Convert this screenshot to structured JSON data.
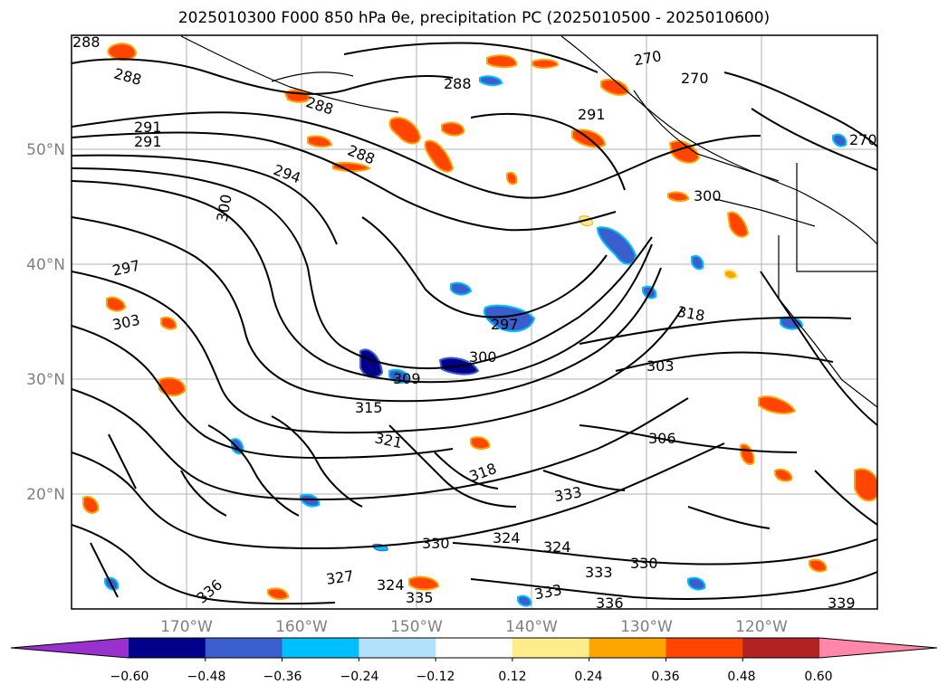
{
  "title": "2025010300 F000 850 hPa θe, precipitation PC (2025010500 - 2025010600)",
  "map": {
    "lat_labels": [
      "50°N",
      "40°N",
      "30°N",
      "20°N"
    ],
    "lon_labels": [
      "170°W",
      "160°W",
      "150°W",
      "140°W",
      "130°W",
      "120°W"
    ],
    "contour_labels": [
      {
        "text": "288"
      },
      {
        "text": "288"
      },
      {
        "text": "288"
      },
      {
        "text": "288"
      },
      {
        "text": "288"
      },
      {
        "text": "270"
      },
      {
        "text": "270"
      },
      {
        "text": "270"
      },
      {
        "text": "291"
      },
      {
        "text": "291"
      },
      {
        "text": "291"
      },
      {
        "text": "294"
      },
      {
        "text": "300"
      },
      {
        "text": "297"
      },
      {
        "text": "303"
      },
      {
        "text": "300"
      },
      {
        "text": "297"
      },
      {
        "text": "300"
      },
      {
        "text": "309"
      },
      {
        "text": "318"
      },
      {
        "text": "303"
      },
      {
        "text": "315"
      },
      {
        "text": "321"
      },
      {
        "text": "306"
      },
      {
        "text": "318"
      },
      {
        "text": "333"
      },
      {
        "text": "330"
      },
      {
        "text": "324"
      },
      {
        "text": "324"
      },
      {
        "text": "333"
      },
      {
        "text": "330"
      },
      {
        "text": "327"
      },
      {
        "text": "324"
      },
      {
        "text": "336"
      },
      {
        "text": "339"
      },
      {
        "text": "335"
      },
      {
        "text": "333"
      },
      {
        "text": "336"
      }
    ]
  },
  "colorbar": {
    "ticks": [
      "−0.60",
      "−0.48",
      "−0.36",
      "−0.24",
      "−0.12",
      "0.12",
      "0.24",
      "0.36",
      "0.48",
      "0.60"
    ],
    "colors": [
      "#9932CC",
      "#00008B",
      "#3A5FCD",
      "#00BFFF",
      "#B0E2FF",
      "#FFFFFF",
      "#FFEC8B",
      "#FFA500",
      "#FF4500",
      "#B22222",
      "#FF88AA"
    ]
  }
}
